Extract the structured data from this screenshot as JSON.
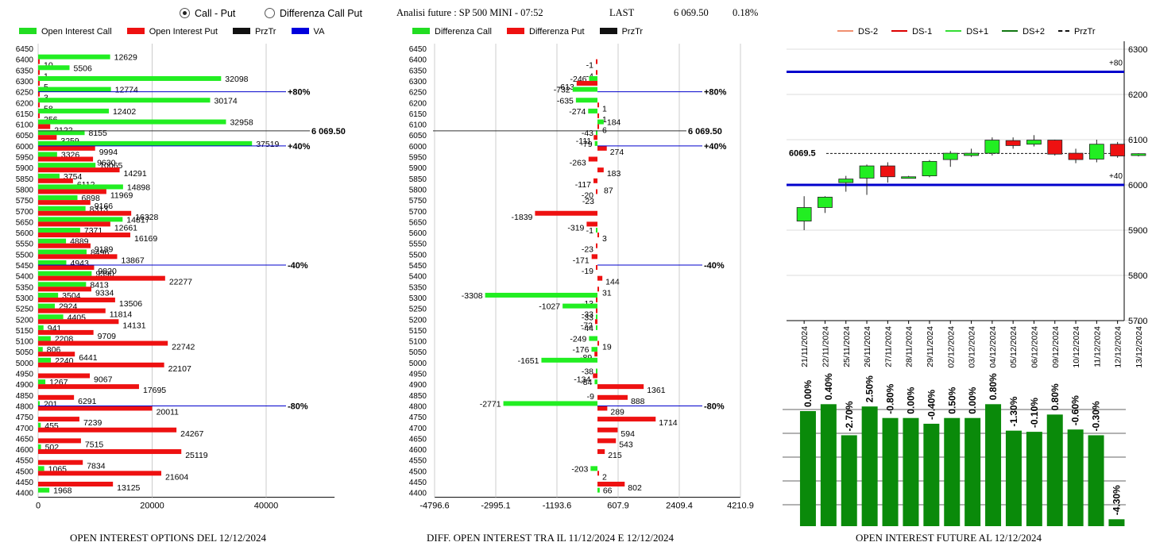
{
  "header": {
    "radio_call_put": "Call - Put",
    "radio_diff": "Differenza Call Put",
    "title": "Analisi future : SP 500 MINI - 07:52",
    "last_label": "LAST",
    "last_value": "6 069.50",
    "last_pct": "0.18%"
  },
  "legends": {
    "left": [
      {
        "label": "Open Interest Call",
        "color": "#22dd22"
      },
      {
        "label": "Open Interest Put",
        "color": "#ee1111"
      },
      {
        "label": "PrzTr",
        "color": "#111111"
      },
      {
        "label": "VA",
        "color": "#0000dd"
      }
    ],
    "mid": [
      {
        "label": "Differenza Call",
        "color": "#22dd22"
      },
      {
        "label": "Differenza Put",
        "color": "#ee1111"
      },
      {
        "label": "PrzTr",
        "color": "#111111"
      }
    ],
    "right": [
      {
        "label": "DS-2",
        "color": "#f09070"
      },
      {
        "label": "DS-1",
        "color": "#dd0000"
      },
      {
        "label": "DS+1",
        "color": "#33dd33"
      },
      {
        "label": "DS+2",
        "color": "#117711"
      },
      {
        "label": "PrzTr",
        "color": "#111111"
      }
    ]
  },
  "footers": {
    "left": "OPEN INTEREST OPTIONS DEL 12/12/2024",
    "mid": "DIFF. OPEN INTEREST TRA IL 11/12/2024 E 12/12/2024",
    "right": "OPEN INTEREST FUTURE AL 12/12/2024"
  },
  "colors": {
    "call": "#22ee22",
    "put": "#ee1111",
    "va": "#0000cc",
    "bar_green": "#0a8a0a"
  },
  "chart_data": [
    {
      "type": "bar",
      "orientation": "horizontal",
      "title": "OPEN INTEREST OPTIONS DEL 12/12/2024",
      "xlim": [
        0,
        52000
      ],
      "xticks": [
        "0",
        "20000",
        "40000"
      ],
      "categories": [
        6450,
        6400,
        6350,
        6300,
        6250,
        6200,
        6150,
        6100,
        6050,
        6000,
        5950,
        5900,
        5850,
        5800,
        5750,
        5700,
        5650,
        5600,
        5550,
        5500,
        5450,
        5400,
        5350,
        5300,
        5250,
        5200,
        5150,
        5100,
        5050,
        5000,
        4950,
        4900,
        4850,
        4800,
        4750,
        4700,
        4650,
        4600,
        4550,
        4500,
        4450,
        4400
      ],
      "series": [
        {
          "name": "Open Interest Call",
          "values": [
            null,
            12629,
            5506,
            32098,
            12774,
            30174,
            12402,
            32958,
            8155,
            37519,
            3326,
            10065,
            3754,
            14898,
            6898,
            8313,
            14817,
            7371,
            4889,
            8496,
            4943,
            9390,
            8413,
            3504,
            2924,
            4405,
            941,
            2208,
            806,
            2240,
            null,
            1267,
            null,
            201,
            null,
            455,
            null,
            502,
            null,
            1065,
            null,
            1968
          ]
        },
        {
          "name": "Open Interest Put",
          "values": [
            null,
            10,
            1,
            5,
            3,
            58,
            256,
            2122,
            3259,
            9994,
            9630,
            14291,
            6112,
            11969,
            9166,
            16328,
            12661,
            16169,
            9189,
            13867,
            9820,
            22277,
            9334,
            13506,
            11814,
            14131,
            9709,
            22742,
            6441,
            22107,
            9067,
            17695,
            6291,
            20011,
            7239,
            24267,
            7515,
            25119,
            7834,
            21604,
            13125,
            null
          ]
        }
      ],
      "annotations": [
        {
          "text": "+80%",
          "strike": 6250
        },
        {
          "text": "6 069.50",
          "strike": 6069.5
        },
        {
          "text": "+40%",
          "strike": 6000
        },
        {
          "text": "-40%",
          "strike": 5450
        },
        {
          "text": "-80%",
          "strike": 4800
        }
      ]
    },
    {
      "type": "bar",
      "orientation": "horizontal",
      "title": "DIFF. OPEN INTEREST TRA IL 11/12/2024 E 12/12/2024",
      "xlim": [
        -4796.6,
        4210.9
      ],
      "xticks": [
        "-4796.6",
        "-2995.1",
        "-1193.6",
        "607.9",
        "2409.4",
        "4210.9"
      ],
      "categories": [
        6450,
        6400,
        6350,
        6300,
        6250,
        6200,
        6150,
        6100,
        6050,
        6000,
        5950,
        5900,
        5850,
        5800,
        5750,
        5700,
        5650,
        5600,
        5550,
        5500,
        5450,
        5400,
        5350,
        5300,
        5250,
        5200,
        5150,
        5100,
        5050,
        5000,
        4950,
        4900,
        4850,
        4800,
        4750,
        4700,
        4650,
        4600,
        4550,
        4500,
        4450,
        4400
      ],
      "series": [
        {
          "name": "Differenza Call",
          "values": [
            null,
            null,
            null,
            -246,
            -732,
            -635,
            -274,
            184,
            -43,
            -79,
            null,
            null,
            null,
            null,
            null,
            null,
            null,
            -1,
            null,
            null,
            null,
            null,
            null,
            -3308,
            -1027,
            -33,
            -44,
            -249,
            -176,
            -1651,
            -38,
            -84,
            null,
            -2771,
            null,
            null,
            null,
            null,
            null,
            -203,
            null,
            66
          ]
        },
        {
          "name": "Differenza Put",
          "values": [
            null,
            -1,
            -4,
            -613,
            null,
            1,
            1,
            6,
            -111,
            274,
            -263,
            183,
            -117,
            -20,
            null,
            -1839,
            -319,
            3,
            -23,
            -171,
            -19,
            144,
            31,
            -13,
            -33,
            -72,
            null,
            19,
            -89,
            null,
            -134,
            1361,
            888,
            289,
            1714,
            594,
            543,
            215,
            null,
            2,
            802,
            null
          ]
        }
      ],
      "extra_labels": [
        {
          "strike": 5750,
          "text": "-23"
        },
        {
          "strike": 5800,
          "text": "87"
        },
        {
          "strike": 4850,
          "text": "-9"
        }
      ],
      "annotations": [
        {
          "text": "+80%",
          "strike": 6250
        },
        {
          "text": "6 069.50",
          "strike": 6069.5
        },
        {
          "text": "+40%",
          "strike": 6000
        },
        {
          "text": "-40%",
          "strike": 5450
        },
        {
          "text": "-80%",
          "strike": 4800
        }
      ]
    },
    {
      "type": "candlestick",
      "ylim": [
        5700,
        6300
      ],
      "yticks": [
        "6300",
        "6200",
        "6100",
        "6000",
        "5900",
        "5800",
        "5700"
      ],
      "categories": [
        "21/11/2024",
        "22/11/2024",
        "25/11/2024",
        "26/11/2024",
        "27/11/2024",
        "28/11/2024",
        "29/11/2024",
        "02/12/2024",
        "03/12/2024",
        "04/12/2024",
        "05/12/2024",
        "06/12/2024",
        "09/12/2024",
        "10/12/2024",
        "11/12/2024",
        "12/12/2024",
        "13/12/2024"
      ],
      "ohlc": [
        {
          "o": 5920,
          "h": 5975,
          "l": 5900,
          "c": 5950
        },
        {
          "o": 5950,
          "h": 5975,
          "l": 5938,
          "c": 5973
        },
        {
          "o": 6005,
          "h": 6020,
          "l": 5985,
          "c": 6013
        },
        {
          "o": 6015,
          "h": 6045,
          "l": 5978,
          "c": 6042
        },
        {
          "o": 6042,
          "h": 6050,
          "l": 6005,
          "c": 6018
        },
        {
          "o": 6016,
          "h": 6020,
          "l": 6014,
          "c": 6018
        },
        {
          "o": 6020,
          "h": 6055,
          "l": 6017,
          "c": 6052
        },
        {
          "o": 6056,
          "h": 6075,
          "l": 6040,
          "c": 6070
        },
        {
          "o": 6065,
          "h": 6080,
          "l": 6062,
          "c": 6070
        },
        {
          "o": 6070,
          "h": 6105,
          "l": 6065,
          "c": 6099
        },
        {
          "o": 6098,
          "h": 6105,
          "l": 6080,
          "c": 6087
        },
        {
          "o": 6090,
          "h": 6110,
          "l": 6085,
          "c": 6099
        },
        {
          "o": 6099,
          "h": 6100,
          "l": 6065,
          "c": 6068
        },
        {
          "o": 6070,
          "h": 6080,
          "l": 6048,
          "c": 6056
        },
        {
          "o": 6057,
          "h": 6100,
          "l": 6050,
          "c": 6090
        },
        {
          "o": 6090,
          "h": 6095,
          "l": 6060,
          "c": 6064
        },
        {
          "o": 6065,
          "h": 6070,
          "l": 6063,
          "c": 6069
        }
      ],
      "price_label": "6069.5",
      "price": 6069.5,
      "levels": [
        {
          "label": "+80",
          "value": 6250
        },
        {
          "label": "+40",
          "value": 6000
        }
      ]
    },
    {
      "type": "bar",
      "title": "OPEN INTEREST FUTURE AL 12/12/2024",
      "categories": [
        "21/11/2024",
        "22/11/2024",
        "25/11/2024",
        "26/11/2024",
        "27/11/2024",
        "28/11/2024",
        "29/11/2024",
        "02/12/2024",
        "03/12/2024",
        "04/12/2024",
        "05/12/2024",
        "06/12/2024",
        "09/12/2024",
        "10/12/2024",
        "11/12/2024",
        "12/12/2024",
        "13/12/2024"
      ],
      "labels": [
        "0.00%",
        "0.40%",
        "-2.70%",
        "2.50%",
        "-0.80%",
        "0.00%",
        "-0.40%",
        "0.50%",
        "0.00%",
        "0.80%",
        "-1.30%",
        "-0.10%",
        "0.80%",
        "-0.60%",
        "-0.30%",
        "-4.30%"
      ],
      "values": [
        0.0,
        0.4,
        -2.7,
        2.5,
        -0.8,
        0.0,
        -0.4,
        0.5,
        0.0,
        0.8,
        -1.3,
        -0.1,
        0.8,
        -0.6,
        -0.3,
        -4.3
      ],
      "levels": [
        100,
        106,
        79,
        104,
        94,
        94,
        89,
        94,
        94,
        106,
        83,
        82,
        97,
        84,
        79,
        6
      ]
    }
  ]
}
